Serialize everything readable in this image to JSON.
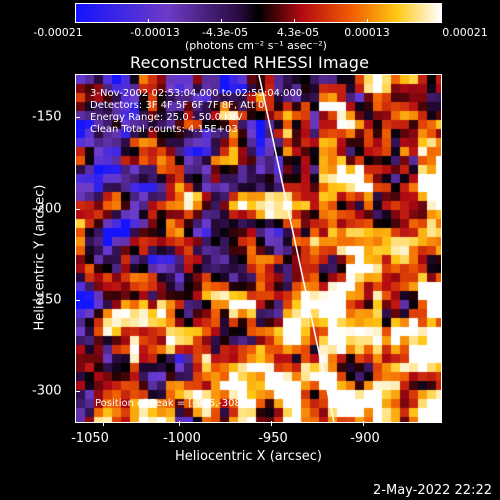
{
  "colorbar": {
    "tick_labels": [
      "-0.00021",
      "-0.00013",
      "-4.3e-05",
      "4.3e-05",
      "0.00013",
      "0.00021"
    ],
    "units": "(photons cm⁻² s⁻¹ asec⁻²)"
  },
  "title": "Reconstructed RHESSI Image",
  "info": {
    "time": "3-Nov-2002 02:53:04.000 to 02:59:04.000",
    "detectors": "Detectors: 3F 4F 5F 6F 7F 8F, Att 0",
    "energy": "Energy Range: 25.0 - 50.0 keV",
    "clean": "Clean    Total counts: 4.15E+03",
    "peak": "Position of Peak = [-956,-308]"
  },
  "x_axis": {
    "label": "Heliocentric X (arcsec)",
    "ticks": [
      "-1050",
      "-1000",
      "-950",
      "-900"
    ]
  },
  "y_axis": {
    "label": "Heliocentric Y (arcsec)",
    "ticks": [
      "-150",
      "-200",
      "-250",
      "-300"
    ]
  },
  "timestamp": "2-May-2022 22:22",
  "colors": {
    "background": "#000000",
    "text": "#ffffff",
    "limb_line": "#ffffff"
  }
}
